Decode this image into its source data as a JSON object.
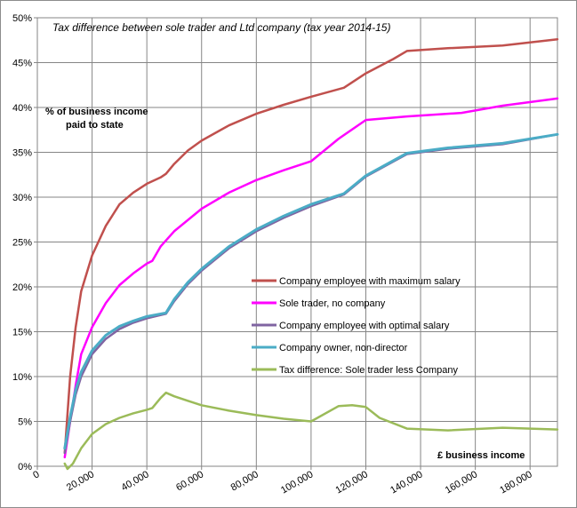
{
  "chart_data": {
    "type": "line",
    "title": "Tax difference between sole trader and Ltd company (tax year 2014-15)",
    "ylabel_lines": [
      "% of business income",
      "paid to state"
    ],
    "xlabel": "£ business income",
    "xlim": [
      0,
      190000
    ],
    "ylim": [
      0,
      50
    ],
    "x_ticks": [
      0,
      20000,
      40000,
      60000,
      80000,
      100000,
      120000,
      140000,
      160000,
      180000
    ],
    "x_tick_labels": [
      "0",
      "20,000",
      "40,000",
      "60,000",
      "80,000",
      "100,000",
      "120,000",
      "140,000",
      "160,000",
      "180,000"
    ],
    "y_ticks": [
      0,
      5,
      10,
      15,
      20,
      25,
      30,
      35,
      40,
      45,
      50
    ],
    "y_tick_labels": [
      "0%",
      "5%",
      "10%",
      "15%",
      "20%",
      "25%",
      "30%",
      "35%",
      "40%",
      "45%",
      "50%"
    ],
    "grid": true,
    "legend_position": "center-right",
    "series": [
      {
        "name": "Company employee with maximum salary",
        "color": "#c0504d",
        "points": [
          [
            10000,
            1.5
          ],
          [
            12000,
            10
          ],
          [
            14000,
            15.5
          ],
          [
            16000,
            19.5
          ],
          [
            20000,
            23.5
          ],
          [
            25000,
            26.8
          ],
          [
            30000,
            29.2
          ],
          [
            35000,
            30.5
          ],
          [
            40000,
            31.5
          ],
          [
            45000,
            32.2
          ],
          [
            47000,
            32.6
          ],
          [
            50000,
            33.7
          ],
          [
            55000,
            35.2
          ],
          [
            60000,
            36.3
          ],
          [
            70000,
            38.0
          ],
          [
            80000,
            39.3
          ],
          [
            90000,
            40.3
          ],
          [
            100000,
            41.2
          ],
          [
            112000,
            42.2
          ],
          [
            120000,
            43.8
          ],
          [
            130000,
            45.4
          ],
          [
            135000,
            46.3
          ],
          [
            150000,
            46.6
          ],
          [
            170000,
            46.9
          ],
          [
            190000,
            47.6
          ]
        ]
      },
      {
        "name": "Sole trader, no company",
        "color": "#ff00ff",
        "points": [
          [
            10000,
            1.0
          ],
          [
            12000,
            5
          ],
          [
            14000,
            9
          ],
          [
            16000,
            12.5
          ],
          [
            20000,
            15.5
          ],
          [
            25000,
            18.2
          ],
          [
            30000,
            20.2
          ],
          [
            35000,
            21.5
          ],
          [
            40000,
            22.6
          ],
          [
            42000,
            22.9
          ],
          [
            45000,
            24.5
          ],
          [
            50000,
            26.2
          ],
          [
            60000,
            28.7
          ],
          [
            70000,
            30.5
          ],
          [
            80000,
            31.9
          ],
          [
            90000,
            33.0
          ],
          [
            100000,
            34.0
          ],
          [
            110000,
            36.5
          ],
          [
            120000,
            38.6
          ],
          [
            135000,
            39.0
          ],
          [
            155000,
            39.4
          ],
          [
            170000,
            40.2
          ],
          [
            190000,
            41.0
          ]
        ]
      },
      {
        "name": "Company employee with optimal salary",
        "color": "#8064a2",
        "points": [
          [
            10000,
            1.5
          ],
          [
            12000,
            5
          ],
          [
            14000,
            8
          ],
          [
            16000,
            10
          ],
          [
            20000,
            12.5
          ],
          [
            25000,
            14.2
          ],
          [
            30000,
            15.3
          ],
          [
            35000,
            16.0
          ],
          [
            40000,
            16.5
          ],
          [
            47000,
            17.0
          ],
          [
            50000,
            18.4
          ],
          [
            55000,
            20.3
          ],
          [
            60000,
            21.8
          ],
          [
            70000,
            24.3
          ],
          [
            80000,
            26.2
          ],
          [
            90000,
            27.7
          ],
          [
            100000,
            29.0
          ],
          [
            112000,
            30.3
          ],
          [
            120000,
            32.3
          ],
          [
            135000,
            34.8
          ],
          [
            150000,
            35.4
          ],
          [
            170000,
            35.9
          ],
          [
            190000,
            37.0
          ]
        ]
      },
      {
        "name": "Company owner, non-director",
        "color": "#4bacc6",
        "points": [
          [
            10000,
            2.0
          ],
          [
            12000,
            5.5
          ],
          [
            14000,
            8.5
          ],
          [
            16000,
            10.5
          ],
          [
            20000,
            12.9
          ],
          [
            25000,
            14.6
          ],
          [
            30000,
            15.6
          ],
          [
            35000,
            16.2
          ],
          [
            40000,
            16.7
          ],
          [
            47000,
            17.1
          ],
          [
            50000,
            18.6
          ],
          [
            55000,
            20.5
          ],
          [
            60000,
            22.0
          ],
          [
            70000,
            24.5
          ],
          [
            80000,
            26.4
          ],
          [
            90000,
            27.9
          ],
          [
            100000,
            29.2
          ],
          [
            112000,
            30.4
          ],
          [
            120000,
            32.4
          ],
          [
            135000,
            34.9
          ],
          [
            150000,
            35.5
          ],
          [
            170000,
            36.0
          ],
          [
            190000,
            37.0
          ]
        ]
      },
      {
        "name": "Tax difference: Sole trader less Company",
        "color": "#9bbb59",
        "points": [
          [
            10000,
            0.3
          ],
          [
            11000,
            -0.3
          ],
          [
            13000,
            0.3
          ],
          [
            16000,
            2.0
          ],
          [
            20000,
            3.6
          ],
          [
            25000,
            4.7
          ],
          [
            30000,
            5.4
          ],
          [
            35000,
            5.9
          ],
          [
            40000,
            6.3
          ],
          [
            42000,
            6.5
          ],
          [
            45000,
            7.6
          ],
          [
            47000,
            8.2
          ],
          [
            50000,
            7.8
          ],
          [
            55000,
            7.3
          ],
          [
            60000,
            6.8
          ],
          [
            70000,
            6.2
          ],
          [
            80000,
            5.7
          ],
          [
            90000,
            5.3
          ],
          [
            100000,
            5.0
          ],
          [
            110000,
            6.7
          ],
          [
            115000,
            6.8
          ],
          [
            120000,
            6.6
          ],
          [
            125000,
            5.4
          ],
          [
            135000,
            4.2
          ],
          [
            150000,
            4.0
          ],
          [
            170000,
            4.3
          ],
          [
            190000,
            4.1
          ]
        ]
      }
    ]
  }
}
